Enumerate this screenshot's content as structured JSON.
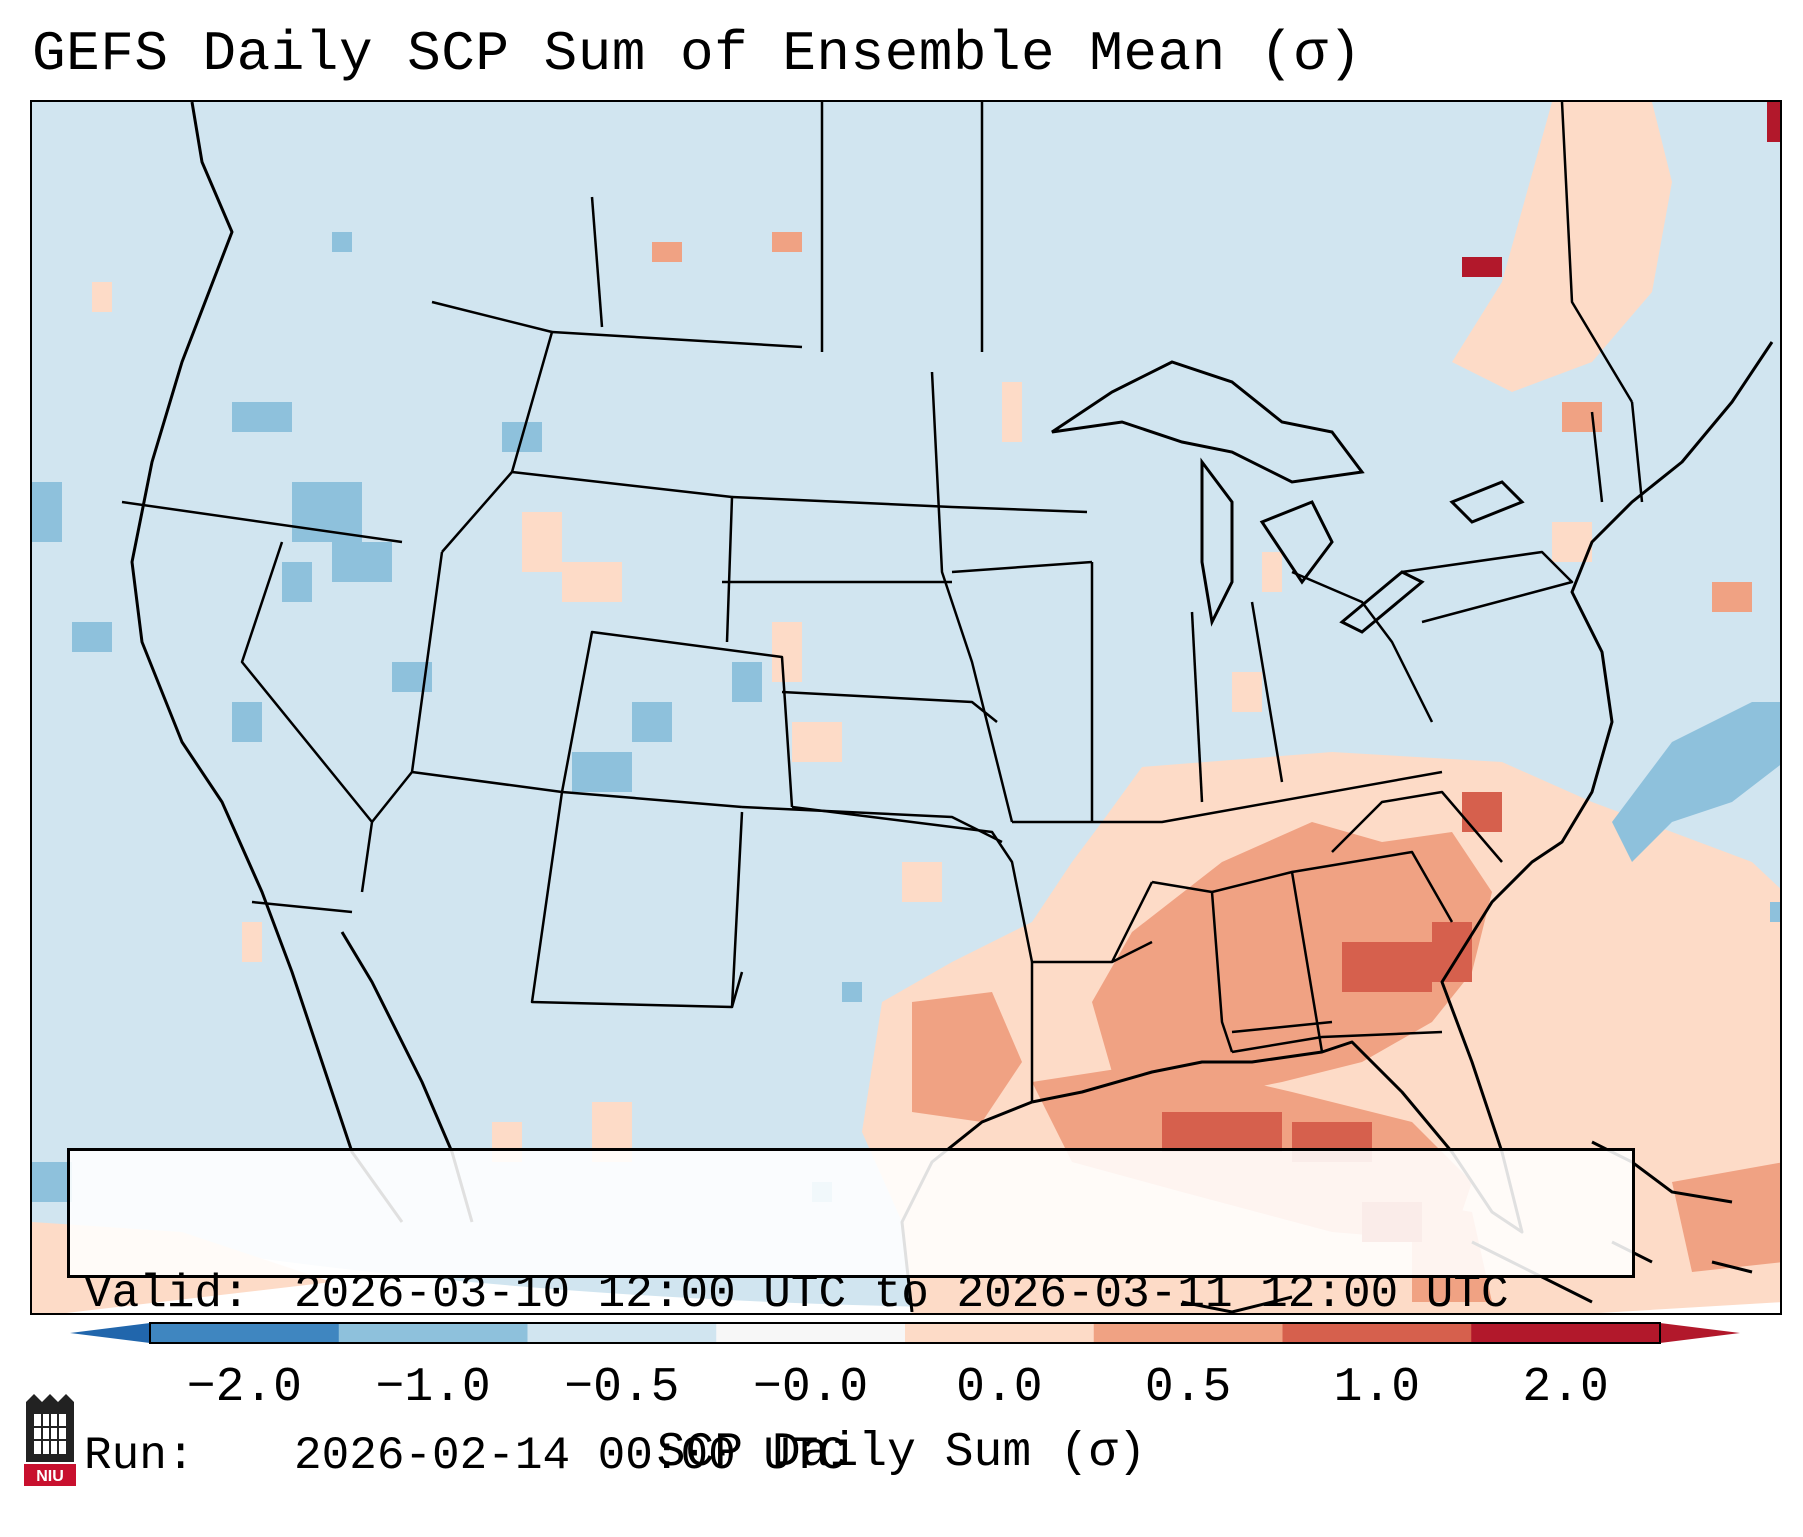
{
  "title": "GEFS Daily SCP Sum of Ensemble Mean (σ)",
  "info": {
    "valid_label": "Valid:",
    "valid_value": "2026-03-10 12:00 UTC to 2026-03-11 12:00 UTC",
    "run_label": "Run:",
    "run_value": "2026-02-14 00:00 UTC"
  },
  "colorbar": {
    "label": "SCP Daily Sum (σ)",
    "ticks": [
      "−2.0",
      "−1.0",
      "−0.5",
      "−0.0",
      "0.0",
      "0.5",
      "1.0",
      "2.0"
    ],
    "colors": [
      "#3f86c0",
      "#8ec1dc",
      "#d1e5f0",
      "#f7f7f7",
      "#fddbc7",
      "#f0a283",
      "#d6604d",
      "#b2182b"
    ],
    "under_color": "#2166ac",
    "over_color": "#b2182b"
  },
  "map": {
    "background_color": "#d1e5f0",
    "positive_color_light": "#fddbc7",
    "positive_color_mid": "#f0a283",
    "positive_color_high": "#d6604d",
    "negative_color": "#8ec1dc"
  },
  "logo": {
    "text": "NIU",
    "color": "#c8102e"
  }
}
